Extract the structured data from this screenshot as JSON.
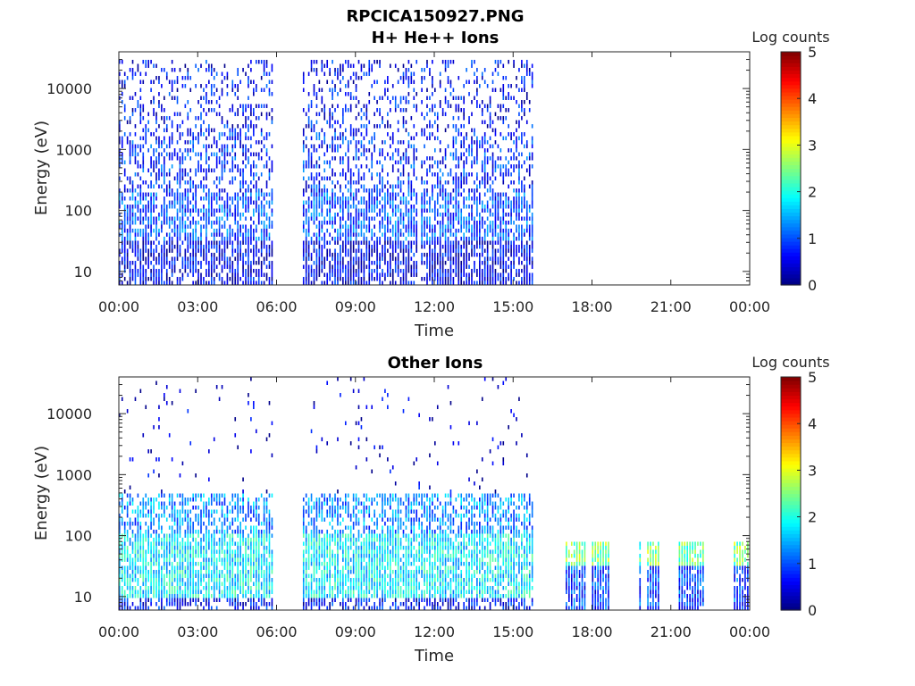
{
  "figure": {
    "title": "RPCICA150927.PNG"
  },
  "chart_data": [
    {
      "type": "heatmap",
      "title": "H+ He++ Ions",
      "xlabel": "Time",
      "ylabel": "Energy (eV)",
      "x_ticks": [
        "00:00",
        "03:00",
        "06:00",
        "09:00",
        "12:00",
        "15:00",
        "18:00",
        "21:00",
        "00:00"
      ],
      "xlim_hours": [
        0,
        24
      ],
      "y_scale": "log",
      "y_ticks": [
        "10",
        "100",
        "1000",
        "10000"
      ],
      "ylim": [
        6,
        40000
      ],
      "colorbar": {
        "label": "Log counts",
        "ticks": [
          "0",
          "1",
          "2",
          "3",
          "4",
          "5"
        ],
        "range": [
          0,
          5
        ],
        "colormap": "jet"
      },
      "data_intervals_hours": [
        [
          0,
          5.95
        ],
        [
          7.05,
          11.4
        ],
        [
          11.55,
          15.85
        ]
      ],
      "max_energy_ev": 30000,
      "typical_log_counts": {
        "below_30eV": 0.5,
        "30_to_200eV": 1.0,
        "200_to_2000eV": 0.8,
        "above_2000eV": 0.6
      }
    },
    {
      "type": "heatmap",
      "title": "Other Ions",
      "xlabel": "Time",
      "ylabel": "Energy (eV)",
      "x_ticks": [
        "00:00",
        "03:00",
        "06:00",
        "09:00",
        "12:00",
        "15:00",
        "18:00",
        "21:00",
        "00:00"
      ],
      "xlim_hours": [
        0,
        24
      ],
      "y_scale": "log",
      "y_ticks": [
        "10",
        "100",
        "1000",
        "10000"
      ],
      "ylim": [
        6,
        40000
      ],
      "colorbar": {
        "label": "Log counts",
        "ticks": [
          "0",
          "1",
          "2",
          "3",
          "4",
          "5"
        ],
        "range": [
          0,
          5
        ],
        "colormap": "jet"
      },
      "data_intervals_hours": [
        [
          0,
          5.95
        ],
        [
          7.05,
          15.85
        ]
      ],
      "dense_band_ev": [
        10,
        500
      ],
      "typical_log_counts": {
        "10_to_100eV": 1.8,
        "100_to_500eV": 1.3,
        "above_500eV": 0.3
      },
      "low_energy_bursts": [
        {
          "start_hours": 17.05,
          "end_hours": 17.8,
          "max_ev": 80,
          "log_counts": 2.5
        },
        {
          "start_hours": 18.05,
          "end_hours": 18.75,
          "max_ev": 80,
          "log_counts": 2.5
        },
        {
          "start_hours": 19.8,
          "end_hours": 19.9,
          "max_ev": 80,
          "log_counts": 2.3
        },
        {
          "start_hours": 20.15,
          "end_hours": 20.6,
          "max_ev": 80,
          "log_counts": 2.5
        },
        {
          "start_hours": 21.3,
          "end_hours": 22.35,
          "max_ev": 80,
          "log_counts": 2.4
        },
        {
          "start_hours": 23.4,
          "end_hours": 24.0,
          "max_ev": 80,
          "log_counts": 2.5
        }
      ]
    }
  ]
}
